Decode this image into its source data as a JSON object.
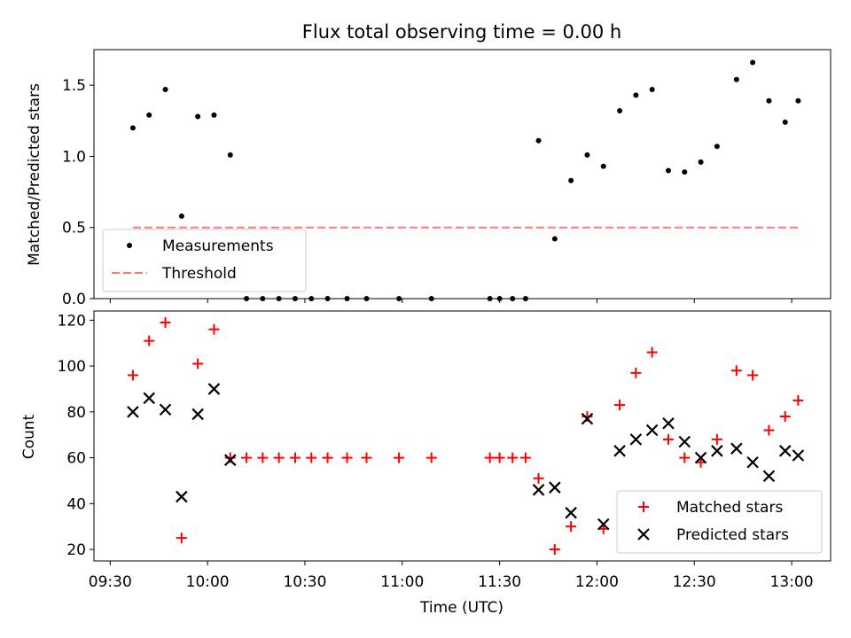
{
  "title": "Flux total observing time = 0.00 h",
  "chart_data": [
    {
      "type": "scatter",
      "panel": "top",
      "ylabel": "Matched/Predicted stars",
      "ylim": [
        0,
        1.75
      ],
      "yticks": [
        0.0,
        0.5,
        1.0,
        1.5
      ],
      "ytick_labels": [
        "0.0",
        "0.5",
        "1.0",
        "1.5"
      ],
      "legend_position": "lower-left",
      "series": [
        {
          "name": "Measurements",
          "kind": "scatter",
          "marker": "dot",
          "color": "#000000",
          "points": [
            [
              "09:37",
              1.2
            ],
            [
              "09:42",
              1.29
            ],
            [
              "09:47",
              1.47
            ],
            [
              "09:52",
              0.58
            ],
            [
              "09:57",
              1.28
            ],
            [
              "10:02",
              1.29
            ],
            [
              "10:07",
              1.01
            ],
            [
              "10:12",
              0
            ],
            [
              "10:17",
              0
            ],
            [
              "10:22",
              0
            ],
            [
              "10:27",
              0
            ],
            [
              "10:32",
              0
            ],
            [
              "10:37",
              0
            ],
            [
              "10:43",
              0
            ],
            [
              "10:49",
              0
            ],
            [
              "10:59",
              0
            ],
            [
              "11:09",
              0
            ],
            [
              "11:27",
              0
            ],
            [
              "11:30",
              0
            ],
            [
              "11:34",
              0
            ],
            [
              "11:38",
              0
            ],
            [
              "11:42",
              1.11
            ],
            [
              "11:47",
              0.42
            ],
            [
              "11:52",
              0.83
            ],
            [
              "11:57",
              1.01
            ],
            [
              "12:02",
              0.93
            ],
            [
              "12:07",
              1.32
            ],
            [
              "12:12",
              1.43
            ],
            [
              "12:17",
              1.47
            ],
            [
              "12:22",
              0.9
            ],
            [
              "12:27",
              0.89
            ],
            [
              "12:32",
              0.96
            ],
            [
              "12:37",
              1.07
            ],
            [
              "12:43",
              1.54
            ],
            [
              "12:48",
              1.66
            ],
            [
              "12:53",
              1.39
            ],
            [
              "12:58",
              1.24
            ],
            [
              "13:02",
              1.39
            ]
          ]
        },
        {
          "name": "Threshold",
          "kind": "line",
          "style": "dashed",
          "color": "#ff7777",
          "points": [
            [
              "09:37",
              0.5
            ],
            [
              "13:02",
              0.5
            ]
          ]
        }
      ]
    },
    {
      "type": "scatter",
      "panel": "bottom",
      "ylabel": "Count",
      "xlabel": "Time (UTC)",
      "ylim": [
        15,
        124
      ],
      "yticks": [
        20,
        40,
        60,
        80,
        100,
        120
      ],
      "ytick_labels": [
        "20",
        "40",
        "60",
        "80",
        "100",
        "120"
      ],
      "xlim": [
        "09:25",
        "13:12"
      ],
      "xticks": [
        "09:30",
        "10:00",
        "10:30",
        "11:00",
        "11:30",
        "12:00",
        "12:30",
        "13:00"
      ],
      "legend_position": "lower-right",
      "series": [
        {
          "name": "Matched stars",
          "kind": "scatter",
          "marker": "plus",
          "color": "#ff0000",
          "points": [
            [
              "09:37",
              96
            ],
            [
              "09:42",
              111
            ],
            [
              "09:47",
              119
            ],
            [
              "09:52",
              25
            ],
            [
              "09:57",
              101
            ],
            [
              "10:02",
              116
            ],
            [
              "10:07",
              60
            ],
            [
              "10:12",
              60
            ],
            [
              "10:17",
              60
            ],
            [
              "10:22",
              60
            ],
            [
              "10:27",
              60
            ],
            [
              "10:32",
              60
            ],
            [
              "10:37",
              60
            ],
            [
              "10:43",
              60
            ],
            [
              "10:49",
              60
            ],
            [
              "10:59",
              60
            ],
            [
              "11:09",
              60
            ],
            [
              "11:27",
              60
            ],
            [
              "11:30",
              60
            ],
            [
              "11:34",
              60
            ],
            [
              "11:38",
              60
            ],
            [
              "11:42",
              51
            ],
            [
              "11:47",
              20
            ],
            [
              "11:52",
              30
            ],
            [
              "11:57",
              78
            ],
            [
              "12:02",
              29
            ],
            [
              "12:07",
              83
            ],
            [
              "12:12",
              97
            ],
            [
              "12:17",
              106
            ],
            [
              "12:22",
              68
            ],
            [
              "12:27",
              60
            ],
            [
              "12:32",
              58
            ],
            [
              "12:37",
              68
            ],
            [
              "12:43",
              98
            ],
            [
              "12:48",
              96
            ],
            [
              "12:53",
              72
            ],
            [
              "12:58",
              78
            ],
            [
              "13:02",
              85
            ]
          ]
        },
        {
          "name": "Predicted stars",
          "kind": "scatter",
          "marker": "x",
          "color": "#000000",
          "points": [
            [
              "09:37",
              80
            ],
            [
              "09:42",
              86
            ],
            [
              "09:47",
              81
            ],
            [
              "09:52",
              43
            ],
            [
              "09:57",
              79
            ],
            [
              "10:02",
              90
            ],
            [
              "10:07",
              59
            ],
            [
              "11:42",
              46
            ],
            [
              "11:47",
              47
            ],
            [
              "11:52",
              36
            ],
            [
              "11:57",
              77
            ],
            [
              "12:02",
              31
            ],
            [
              "12:07",
              63
            ],
            [
              "12:12",
              68
            ],
            [
              "12:17",
              72
            ],
            [
              "12:22",
              75
            ],
            [
              "12:27",
              67
            ],
            [
              "12:32",
              60
            ],
            [
              "12:37",
              63
            ],
            [
              "12:43",
              64
            ],
            [
              "12:48",
              58
            ],
            [
              "12:53",
              52
            ],
            [
              "12:58",
              63
            ],
            [
              "13:02",
              61
            ]
          ]
        }
      ]
    }
  ]
}
